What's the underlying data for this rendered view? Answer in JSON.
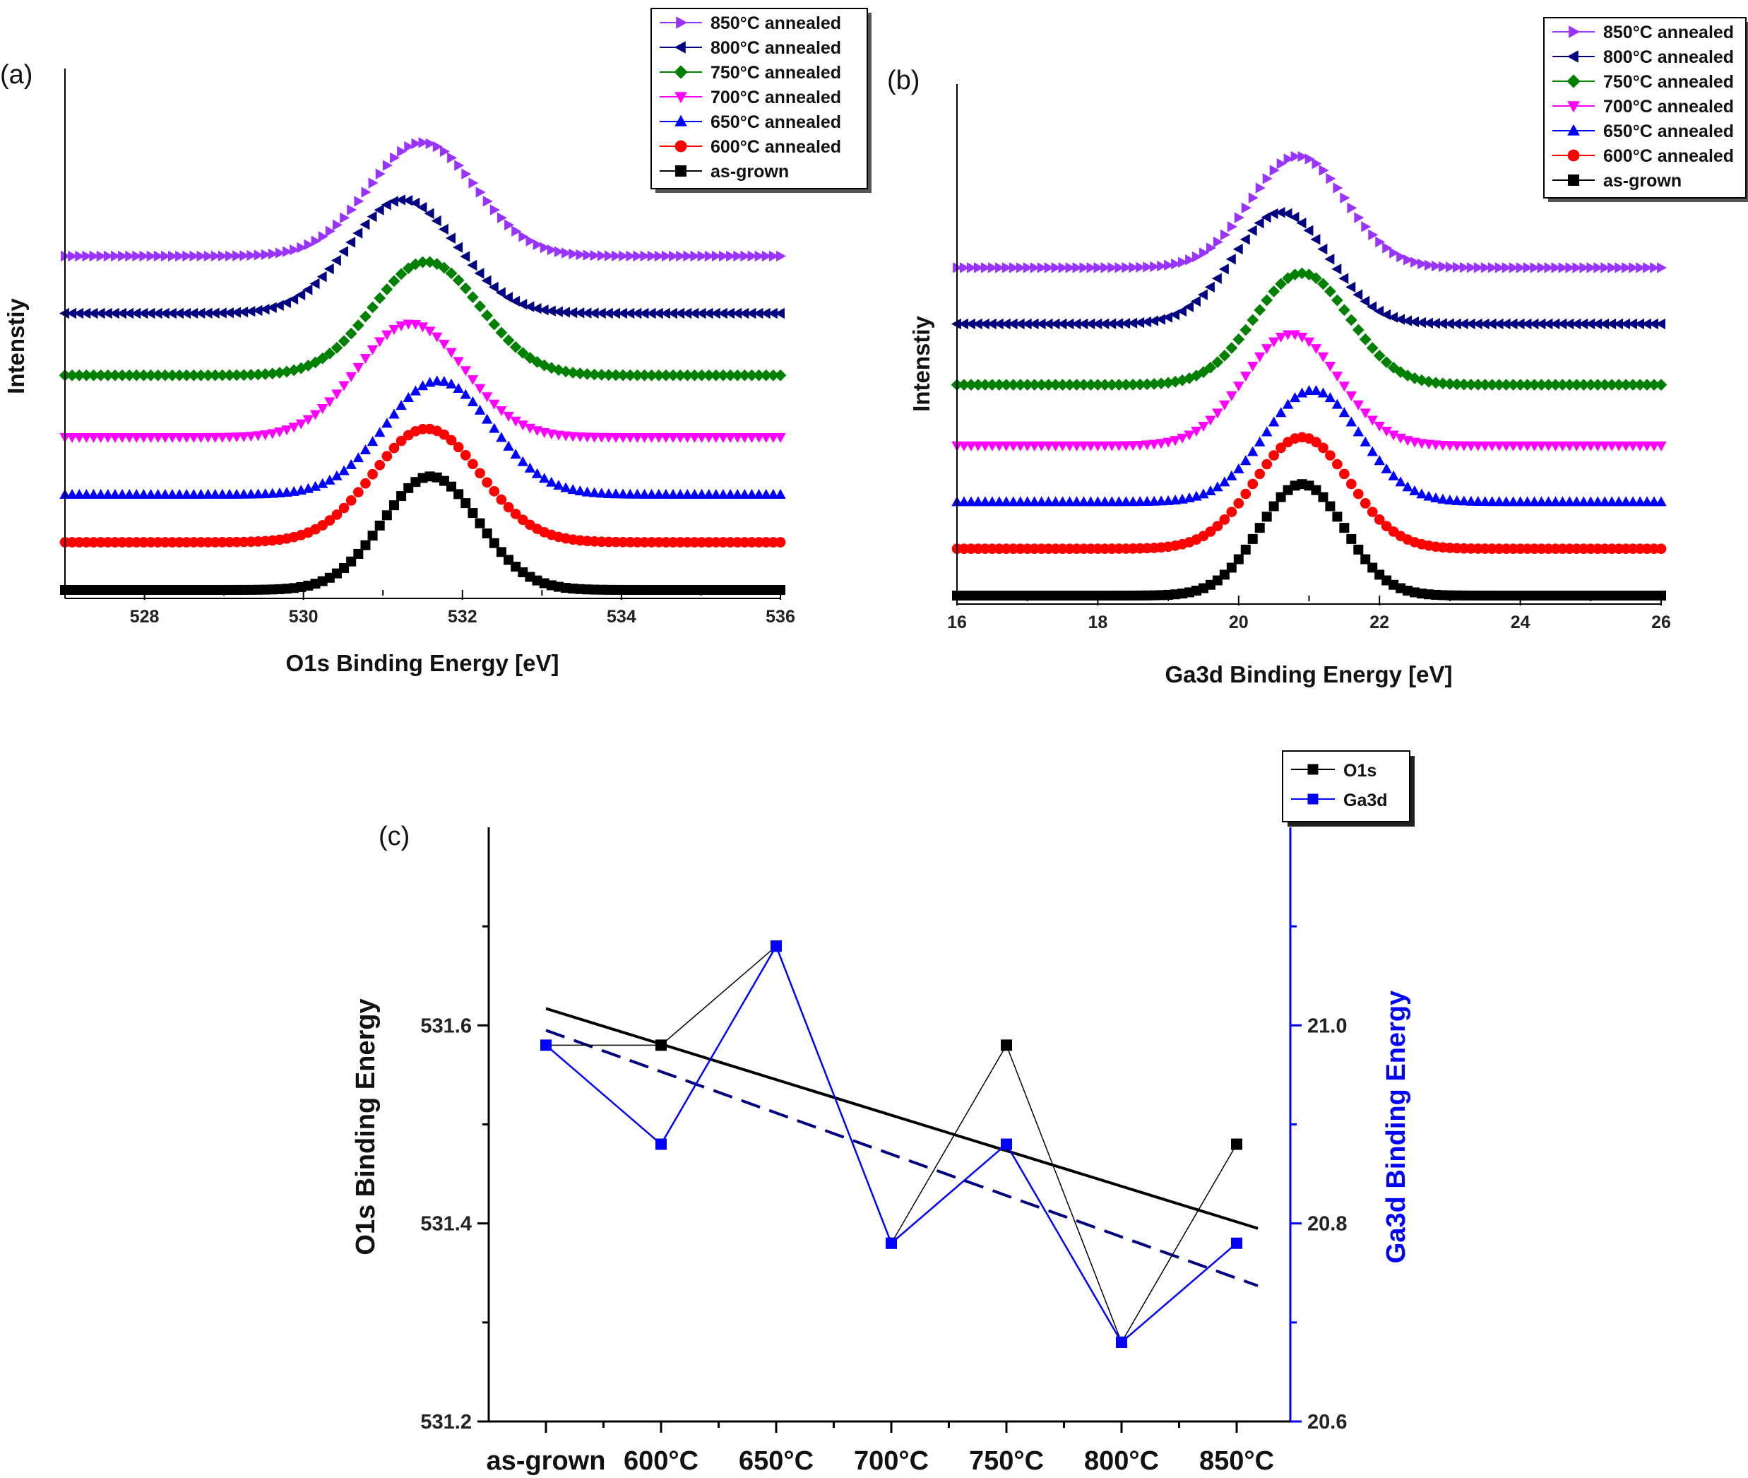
{
  "chart_data": [
    {
      "type": "line",
      "panel_label": "(a)",
      "xlabel": "O1s Binding Energy [eV]",
      "ylabel": "Intenstiy",
      "xlim": [
        527,
        536
      ],
      "xticks": [
        528,
        530,
        532,
        534,
        536
      ],
      "grid": false,
      "legend_position": "top-right",
      "series": [
        {
          "name": "850°C annealed",
          "marker": "triangle-right",
          "color": "#9933ff",
          "peak_center": 531.5,
          "peak_width": 0.95,
          "peak_height": 0.85,
          "baseline": 0.7
        },
        {
          "name": "800°C annealed",
          "marker": "triangle-left",
          "color": "#000080",
          "peak_center": 531.25,
          "peak_width": 0.95,
          "peak_height": 0.85,
          "baseline": 0.58
        },
        {
          "name": "750°C annealed",
          "marker": "diamond",
          "color": "#008000",
          "peak_center": 531.55,
          "peak_width": 0.95,
          "peak_height": 0.85,
          "baseline": 0.45
        },
        {
          "name": "700°C annealed",
          "marker": "triangle-down",
          "color": "#ff00ff",
          "peak_center": 531.35,
          "peak_width": 0.95,
          "peak_height": 0.85,
          "baseline": 0.32
        },
        {
          "name": "650°C annealed",
          "marker": "triangle-up",
          "color": "#0000ff",
          "peak_center": 531.7,
          "peak_width": 0.95,
          "peak_height": 0.85,
          "baseline": 0.2
        },
        {
          "name": "600°C annealed",
          "marker": "circle",
          "color": "#ff0000",
          "peak_center": 531.55,
          "peak_width": 0.95,
          "peak_height": 0.85,
          "baseline": 0.1
        },
        {
          "name": "as-grown",
          "marker": "square",
          "color": "#000000",
          "peak_center": 531.6,
          "peak_width": 0.85,
          "peak_height": 0.85,
          "baseline": 0.0
        }
      ]
    },
    {
      "type": "line",
      "panel_label": "(b)",
      "xlabel": "Ga3d Binding Energy [eV]",
      "ylabel": "Intenstiy",
      "xlim": [
        16,
        26
      ],
      "xticks": [
        16,
        18,
        20,
        22,
        24,
        26
      ],
      "grid": false,
      "legend_position": "top-right",
      "series": [
        {
          "name": "850°C annealed",
          "marker": "triangle-right",
          "color": "#9933ff",
          "peak_center": 20.85,
          "peak_width": 0.95,
          "peak_height": 0.85,
          "baseline": 0.7
        },
        {
          "name": "800°C annealed",
          "marker": "triangle-left",
          "color": "#000080",
          "peak_center": 20.6,
          "peak_width": 0.95,
          "peak_height": 0.85,
          "baseline": 0.58
        },
        {
          "name": "750°C annealed",
          "marker": "diamond",
          "color": "#008000",
          "peak_center": 20.9,
          "peak_width": 0.95,
          "peak_height": 0.85,
          "baseline": 0.45
        },
        {
          "name": "700°C annealed",
          "marker": "triangle-down",
          "color": "#ff00ff",
          "peak_center": 20.75,
          "peak_width": 0.95,
          "peak_height": 0.85,
          "baseline": 0.32
        },
        {
          "name": "650°C annealed",
          "marker": "triangle-up",
          "color": "#0000ff",
          "peak_center": 21.05,
          "peak_width": 0.95,
          "peak_height": 0.85,
          "baseline": 0.2
        },
        {
          "name": "600°C annealed",
          "marker": "circle",
          "color": "#ff0000",
          "peak_center": 20.9,
          "peak_width": 0.95,
          "peak_height": 0.85,
          "baseline": 0.1
        },
        {
          "name": "as-grown",
          "marker": "square",
          "color": "#000000",
          "peak_center": 20.9,
          "peak_width": 0.85,
          "peak_height": 0.85,
          "baseline": 0.0
        }
      ]
    },
    {
      "type": "line",
      "panel_label": "(c)",
      "categories": [
        "as-grown",
        "600°C",
        "650°C",
        "700°C",
        "750°C",
        "800°C",
        "850°C"
      ],
      "ylabel": "O1s Binding Energy",
      "y2label": "Ga3d Binding Energy",
      "ylim": [
        531.2,
        531.8
      ],
      "y2lim": [
        20.6,
        21.2
      ],
      "yticks": [
        531.2,
        531.4,
        531.6
      ],
      "y2ticks": [
        20.6,
        20.8,
        21.0
      ],
      "grid": false,
      "legend_position": "top-right",
      "series": [
        {
          "name": "O1s",
          "axis": "left",
          "color": "#000000",
          "marker": "square",
          "values": [
            null,
            531.58,
            531.68,
            531.38,
            531.58,
            531.28,
            531.48
          ]
        },
        {
          "name": "Ga3d",
          "axis": "right",
          "color": "#0000ff",
          "marker": "square",
          "values": [
            20.98,
            20.88,
            21.08,
            20.78,
            20.88,
            20.68,
            20.78
          ]
        }
      ],
      "fits": [
        {
          "axis": "left",
          "style": "solid",
          "color": "#000000",
          "start": 531.617,
          "end": 531.395
        },
        {
          "axis": "right",
          "style": "dashed",
          "color": "#000080",
          "start": 20.995,
          "end": 20.737
        }
      ]
    }
  ]
}
